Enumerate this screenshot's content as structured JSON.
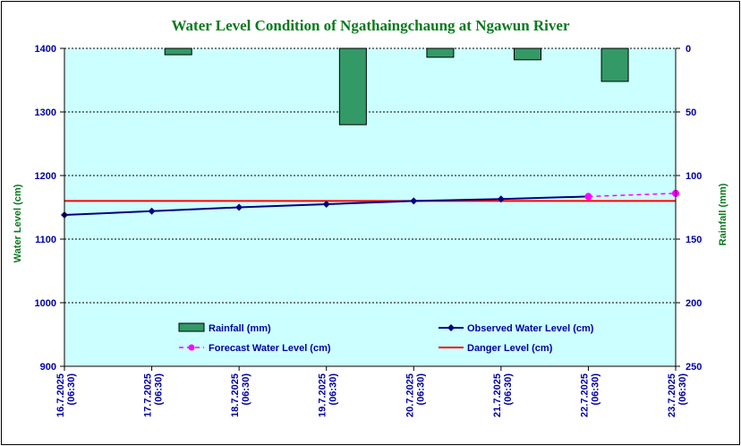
{
  "chart_data": {
    "type": "bar+line",
    "title": "Water Level Condition of  Ngathaingchaung at Ngawun River",
    "ylabel_left": "Water Level (cm)",
    "ylabel_right": "Rainfall (mm)",
    "ylim_left": [
      900,
      1400
    ],
    "yticks_left": [
      "900",
      "1000",
      "1100",
      "1200",
      "1300",
      "1400"
    ],
    "ylim_right": [
      0,
      250
    ],
    "right_axis_inverted": true,
    "yticks_right": [
      "0",
      "50",
      "100",
      "150",
      "200",
      "250"
    ],
    "categories": [
      "16.7.2025 (06:30)",
      "17.7.2025 (06:30)",
      "18.7.2025 (06:30)",
      "19.7.2025 (06:30)",
      "20.7.2025 (06:30)",
      "21.7.2025 (06:30)",
      "22.7.2025 (06:30)",
      "23.7.2025 (06:30)"
    ],
    "category_lines": [
      [
        "16.7.2025",
        "(06:30)"
      ],
      [
        "17.7.2025",
        "(06:30)"
      ],
      [
        "18.7.2025",
        "(06:30)"
      ],
      [
        "19.7.2025",
        "(06:30)"
      ],
      [
        "20.7.2025",
        "(06:30)"
      ],
      [
        "21.7.2025",
        "(06:30)"
      ],
      [
        "22.7.2025",
        "(06:30)"
      ],
      [
        "23.7.2025",
        "(06:30)"
      ]
    ],
    "grid": true,
    "series": [
      {
        "name": "Rainfall (mm)",
        "type": "bar",
        "axis": "right",
        "color": "#339966",
        "values": [
          null,
          5,
          null,
          60,
          7,
          9,
          26,
          null
        ]
      },
      {
        "name": "Observed Water Level (cm)",
        "type": "line",
        "axis": "left",
        "color": "#000080",
        "values": [
          1138,
          1144,
          1150,
          1155,
          1160,
          1163,
          1167,
          null
        ]
      },
      {
        "name": "Forecast Water Level (cm)",
        "type": "line",
        "axis": "left",
        "style": "dashed",
        "color": "#ff00ff",
        "values": [
          null,
          null,
          null,
          null,
          null,
          null,
          1167,
          1172
        ]
      },
      {
        "name": "Danger Level (cm)",
        "type": "line",
        "axis": "left",
        "color": "#ff0000",
        "values": [
          1160,
          1160,
          1160,
          1160,
          1160,
          1160,
          1160,
          1160
        ]
      }
    ],
    "legend_position": "bottom-inside",
    "colors": {
      "plot_background": "#ccffff",
      "title": "#0a7a1e",
      "ticks": "#0000a0"
    }
  }
}
